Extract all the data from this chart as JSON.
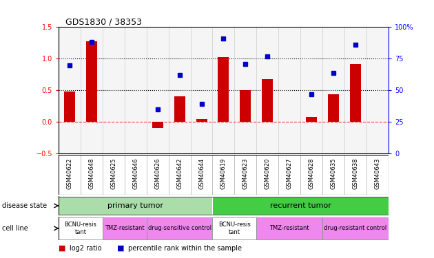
{
  "title": "GDS1830 / 38353",
  "samples": [
    "GSM40622",
    "GSM40648",
    "GSM40625",
    "GSM40646",
    "GSM40626",
    "GSM40642",
    "GSM40644",
    "GSM40619",
    "GSM40623",
    "GSM40620",
    "GSM40627",
    "GSM40628",
    "GSM40635",
    "GSM40638",
    "GSM40643"
  ],
  "log2_ratio": [
    0.48,
    1.28,
    0.0,
    0.0,
    -0.1,
    0.4,
    0.05,
    1.02,
    0.5,
    0.68,
    0.0,
    0.08,
    0.44,
    0.92,
    0.0
  ],
  "percentile_rank": [
    70,
    88,
    0,
    0,
    35,
    62,
    39,
    91,
    71,
    77,
    0,
    47,
    64,
    86,
    0
  ],
  "bar_color": "#cc0000",
  "dot_color": "#0000cc",
  "ylim_left": [
    -0.5,
    1.5
  ],
  "ylim_right": [
    0,
    100
  ],
  "yticks_left": [
    -0.5,
    0.0,
    0.5,
    1.0,
    1.5
  ],
  "yticks_right": [
    0,
    25,
    50,
    75,
    100
  ],
  "hline_y": [
    0.5,
    1.0
  ],
  "disease_state_groups": [
    {
      "label": "primary tumor",
      "start": 0,
      "end": 7,
      "color": "#aaddaa"
    },
    {
      "label": "recurrent tumor",
      "start": 7,
      "end": 15,
      "color": "#44cc44"
    }
  ],
  "cell_line_groups": [
    {
      "label": "BCNU-resis\ntant",
      "start": 0,
      "end": 2,
      "color": "#ffffff"
    },
    {
      "label": "TMZ-resistant",
      "start": 2,
      "end": 4,
      "color": "#ee88ee"
    },
    {
      "label": "drug-sensitive control",
      "start": 4,
      "end": 7,
      "color": "#ee88ee"
    },
    {
      "label": "BCNU-resis\ntant",
      "start": 7,
      "end": 9,
      "color": "#ffffff"
    },
    {
      "label": "TMZ-resistant",
      "start": 9,
      "end": 12,
      "color": "#ee88ee"
    },
    {
      "label": "drug-resistant control",
      "start": 12,
      "end": 15,
      "color": "#ee88ee"
    }
  ]
}
